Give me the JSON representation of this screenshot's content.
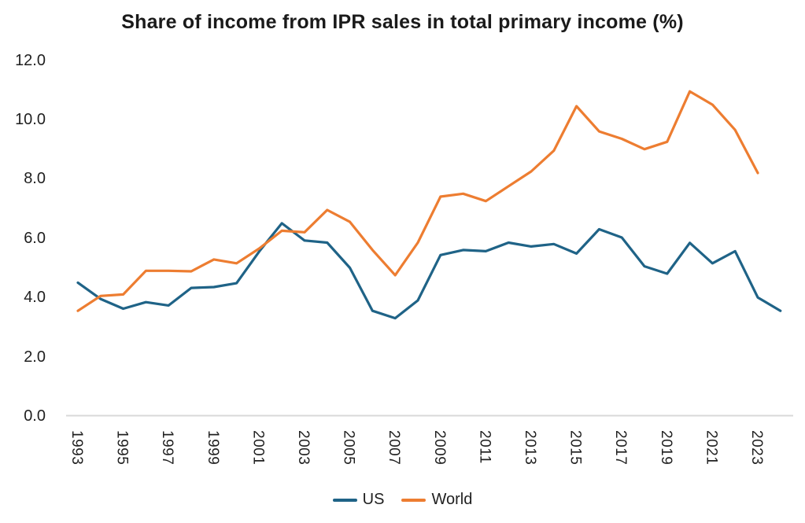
{
  "chart_data": {
    "type": "line",
    "title": "Share of income from IPR sales in total primary income (%)",
    "x": [
      1993,
      1994,
      1995,
      1996,
      1997,
      1998,
      1999,
      2000,
      2001,
      2002,
      2003,
      2004,
      2005,
      2006,
      2007,
      2008,
      2009,
      2010,
      2011,
      2012,
      2013,
      2014,
      2015,
      2016,
      2017,
      2018,
      2019,
      2020,
      2021,
      2022,
      2023,
      2024
    ],
    "series": [
      {
        "name": "US",
        "color": "#1F6387",
        "values": [
          4.5,
          3.95,
          3.62,
          3.84,
          3.73,
          4.32,
          4.35,
          4.48,
          5.55,
          6.5,
          5.92,
          5.85,
          5.0,
          3.55,
          3.3,
          3.9,
          5.43,
          5.6,
          5.56,
          5.85,
          5.72,
          5.8,
          5.48,
          6.3,
          6.02,
          5.05,
          4.8,
          5.84,
          5.15,
          5.56,
          4.0,
          3.55
        ]
      },
      {
        "name": "World",
        "color": "#ED7D31",
        "values": [
          3.55,
          4.05,
          4.1,
          4.9,
          4.9,
          4.88,
          5.28,
          5.15,
          5.65,
          6.25,
          6.2,
          6.95,
          6.55,
          5.6,
          4.75,
          5.85,
          7.4,
          7.5,
          7.25,
          7.75,
          8.25,
          8.95,
          10.45,
          9.6,
          9.35,
          9.0,
          9.25,
          10.95,
          10.5,
          9.65,
          8.2,
          null
        ]
      }
    ],
    "xlabel": "",
    "ylabel": "",
    "ylim": [
      0,
      12
    ],
    "ytick_labels": [
      "0.0",
      "2.0",
      "4.0",
      "6.0",
      "8.0",
      "10.0",
      "12.0"
    ],
    "xtick_labels": [
      "1993",
      "1995",
      "1997",
      "1999",
      "2001",
      "2003",
      "2005",
      "2007",
      "2009",
      "2011",
      "2013",
      "2015",
      "2017",
      "2019",
      "2021",
      "2023"
    ],
    "grid": false,
    "legend_position": "bottom",
    "axis_line_color": "#D9D9D9",
    "text_color": "#1f1f1f"
  },
  "legend": {
    "us_label": "US",
    "world_label": "World"
  }
}
